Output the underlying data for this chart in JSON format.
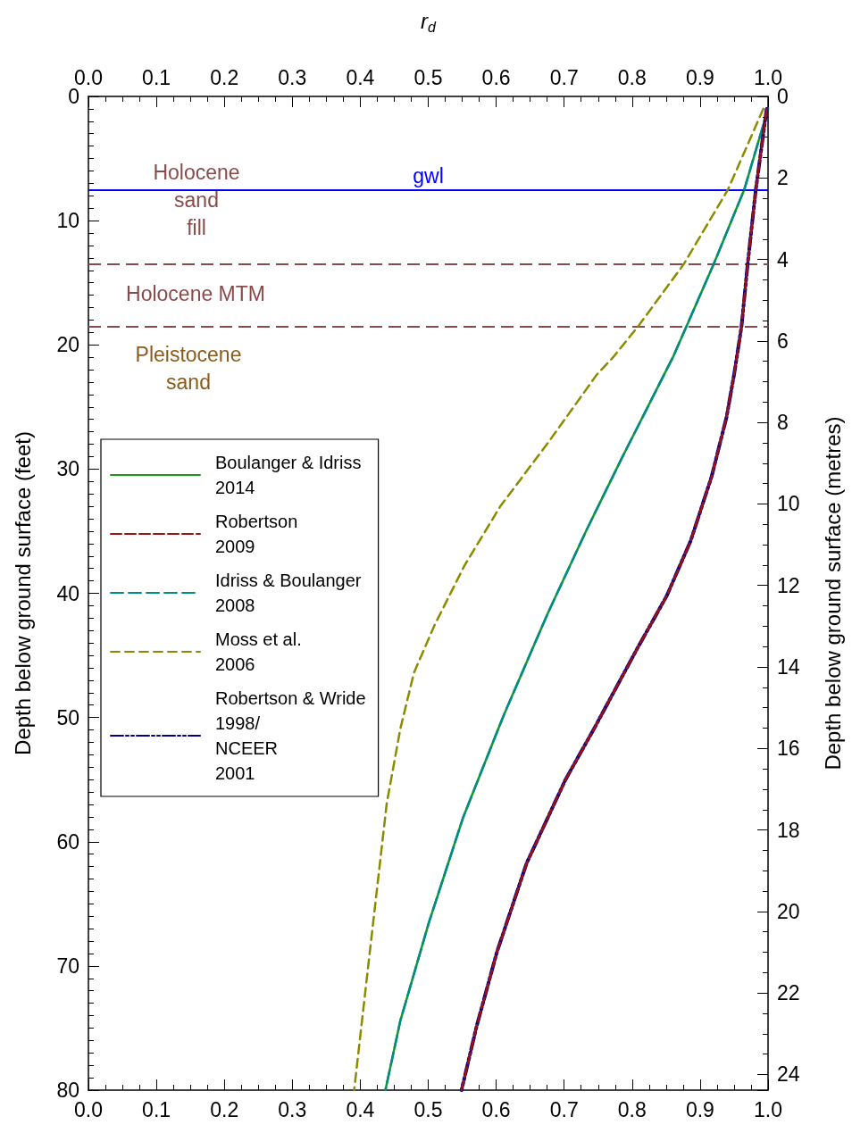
{
  "chart_data": {
    "type": "line",
    "x2label": "r$_{d}$",
    "ylabel": "Depth below ground surface (feet)",
    "y2label": "Depth below ground surface (metres)",
    "xlim": [
      0,
      1
    ],
    "xticks": [
      {
        "value": 0,
        "label": "0.0"
      },
      0.1,
      0.2,
      0.3,
      0.4,
      0.5,
      0.6,
      0.7,
      0.8,
      0.9,
      {
        "value": 1,
        "label": "1.0"
      }
    ],
    "x2lim": [
      0,
      1
    ],
    "x2ticks": [
      {
        "value": 0,
        "label": "0.0"
      },
      0.1,
      0.2,
      0.3,
      0.4,
      0.5,
      0.6,
      0.7,
      0.8,
      0.9,
      {
        "value": 1,
        "label": "1.0"
      }
    ],
    "ylim": [
      80,
      0
    ],
    "yticks": [
      0,
      10,
      20,
      30,
      40,
      50,
      60,
      70,
      80
    ],
    "y2lim": [
      24.384,
      0
    ],
    "y2ticks": [
      0,
      2,
      4,
      6,
      8,
      10,
      12,
      14,
      16,
      18,
      20,
      22,
      24
    ],
    "legend": "left",
    "series": [
      {
        "name": "Boulanger & Idriss\n2014",
        "color": "#1a9a1a",
        "line_style": "solid",
        "x": [
          1.0,
          0.965,
          0.92,
          0.88,
          0.86,
          0.847,
          0.785,
          0.733,
          0.676,
          0.612,
          0.601,
          0.551,
          0.501,
          0.459,
          0.437
        ],
        "values": [
          1,
          7.5,
          13.5,
          18.5,
          21,
          22.4,
          29.1,
          34.9,
          41.6,
          49.7,
          51.2,
          58.1,
          66.5,
          74.4,
          80
        ]
      },
      {
        "name": "Robertson\n2009",
        "color": "#a01010",
        "line_style": "dashed",
        "x": [
          0.998,
          0.982,
          0.97,
          0.961,
          0.954,
          0.95,
          0.939,
          0.917,
          0.886,
          0.851,
          0.807,
          0.744,
          0.702,
          0.645,
          0.601,
          0.571,
          0.549
        ],
        "values": [
          1,
          7.5,
          13.5,
          18.5,
          21,
          22.4,
          25.8,
          30.6,
          35.8,
          40.2,
          44.5,
          50.9,
          55,
          61.7,
          68.9,
          74.9,
          80
        ]
      },
      {
        "name": "Idriss & Boulanger\n2008",
        "color": "#008b8b",
        "line_style": "dashed",
        "x": [
          1.0,
          0.965,
          0.92,
          0.88,
          0.86,
          0.847,
          0.785,
          0.733,
          0.676,
          0.612,
          0.601,
          0.551,
          0.501,
          0.459,
          0.437
        ],
        "values": [
          1,
          7.5,
          13.5,
          18.5,
          21,
          22.4,
          29.1,
          34.9,
          41.6,
          49.7,
          51.2,
          58.1,
          66.5,
          74.4,
          80
        ]
      },
      {
        "name": "Moss et al.\n2006",
        "color": "#8b8b00",
        "line_style": "dashed",
        "x": [
          0.993,
          0.941,
          0.876,
          0.809,
          0.772,
          0.748,
          0.676,
          0.606,
          0.553,
          0.509,
          0.479,
          0.459,
          0.439,
          0.424,
          0.409,
          0.391
        ],
        "values": [
          1,
          7.5,
          13.5,
          18.5,
          21,
          22.4,
          27.9,
          33,
          37.8,
          42.6,
          46.4,
          50.9,
          56.9,
          64.1,
          71.3,
          80
        ]
      },
      {
        "name": "Robertson & Wride\n1998/\nNCEER\n2001",
        "color": "#00008b",
        "line_style": "dashed",
        "x": [
          0.998,
          0.982,
          0.97,
          0.961,
          0.954,
          0.95,
          0.939,
          0.917,
          0.886,
          0.851,
          0.807,
          0.744,
          0.702,
          0.645,
          0.601,
          0.571,
          0.549
        ],
        "values": [
          1,
          7.5,
          13.5,
          18.5,
          21,
          22.4,
          25.8,
          30.6,
          35.8,
          40.2,
          44.5,
          50.9,
          55,
          61.7,
          68.9,
          74.9,
          80
        ]
      }
    ],
    "ref_lines": [
      {
        "axis": "y",
        "value": 7.5,
        "label": "gwl",
        "color": "#0000ff",
        "line_style": "solid"
      },
      {
        "axis": "y",
        "value": 13.5,
        "color": "#8b4a4a",
        "line_style": "dashed"
      },
      {
        "axis": "y",
        "value": 18.5,
        "color": "#8b4a4a",
        "line_style": "dashed"
      }
    ],
    "annotations": [
      "Holocene\nsand\nfill",
      "Holocene MTM",
      "Pleistocene\nsand"
    ]
  }
}
